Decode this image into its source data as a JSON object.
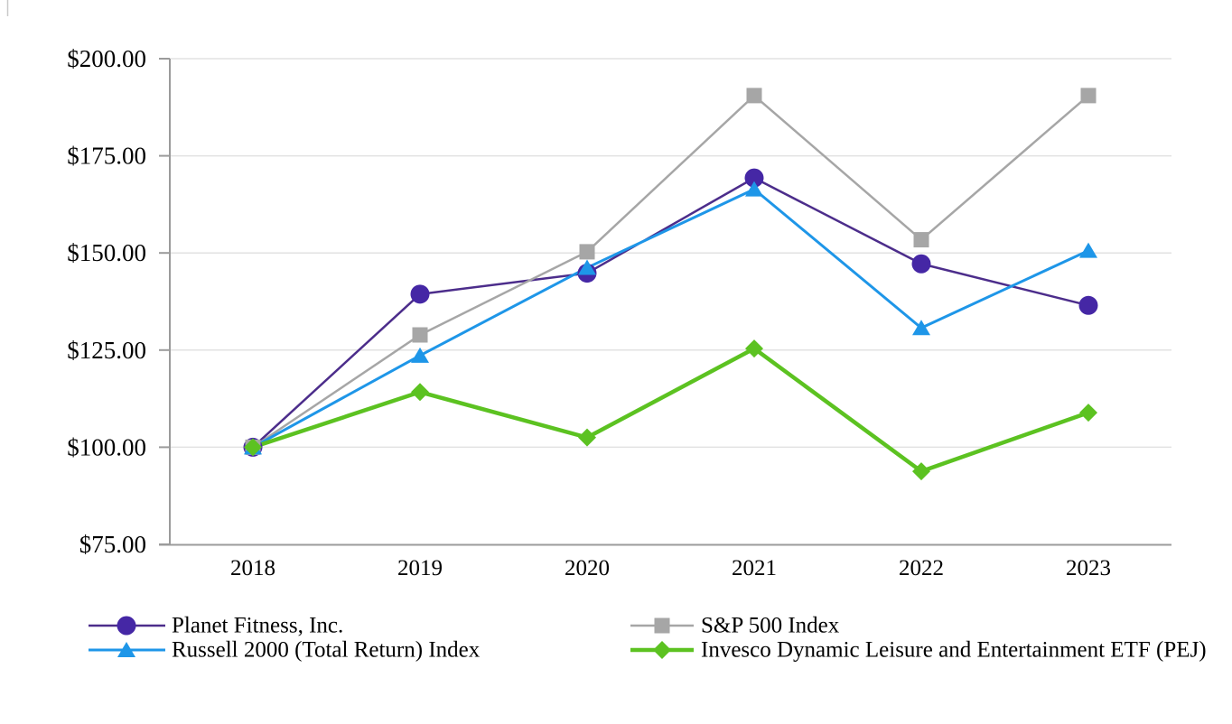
{
  "chart_data": {
    "type": "line",
    "title": "",
    "xlabel": "",
    "ylabel": "",
    "categories": [
      "2018",
      "2019",
      "2020",
      "2021",
      "2022",
      "2023"
    ],
    "series": [
      {
        "key": "planet-fitness",
        "name": "Planet Fitness, Inc.",
        "marker": "circle",
        "line_color": "#4C2D8B",
        "marker_color": "#4527A5",
        "line_width": 2.5,
        "values": [
          100.0,
          139.4,
          144.8,
          169.3,
          147.2,
          136.5
        ]
      },
      {
        "key": "sp500",
        "name": "S&P 500 Index",
        "marker": "square",
        "line_color": "#A6A6A6",
        "marker_color": "#A6A6A6",
        "line_width": 2.5,
        "values": [
          100.0,
          128.9,
          150.3,
          190.5,
          153.4,
          190.5
        ]
      },
      {
        "key": "russell-2000",
        "name": "Russell 2000 (Total Return) Index",
        "marker": "triangle",
        "line_color": "#1E96E8",
        "marker_color": "#1E96E8",
        "line_width": 3,
        "values": [
          100.0,
          123.6,
          146.2,
          166.4,
          130.7,
          150.6
        ]
      },
      {
        "key": "invesco-pej",
        "name": "Invesco Dynamic Leisure and Entertainment ETF (PEJ)",
        "marker": "diamond",
        "line_color": "#5CC221",
        "marker_color": "#5CC221",
        "line_width": 4.5,
        "values": [
          100.0,
          114.2,
          102.5,
          125.4,
          93.8,
          108.9
        ]
      }
    ],
    "y_axis": {
      "min": 75,
      "max": 200,
      "step": 25,
      "ticks": [
        200,
        175,
        150,
        125,
        100,
        75
      ],
      "labels": [
        "$200.00",
        "$175.00",
        "$150.00",
        "$125.00",
        "$100.00",
        "$75.00"
      ]
    },
    "legend": {
      "position": "bottom",
      "columns": [
        [
          0,
          2
        ],
        [
          1,
          3
        ]
      ]
    },
    "grid": "horizontal",
    "colors": {
      "gridline": "#E2E2E2",
      "axis": "#9B9B9B",
      "text": "#000000",
      "background": "#FFFFFF"
    }
  }
}
